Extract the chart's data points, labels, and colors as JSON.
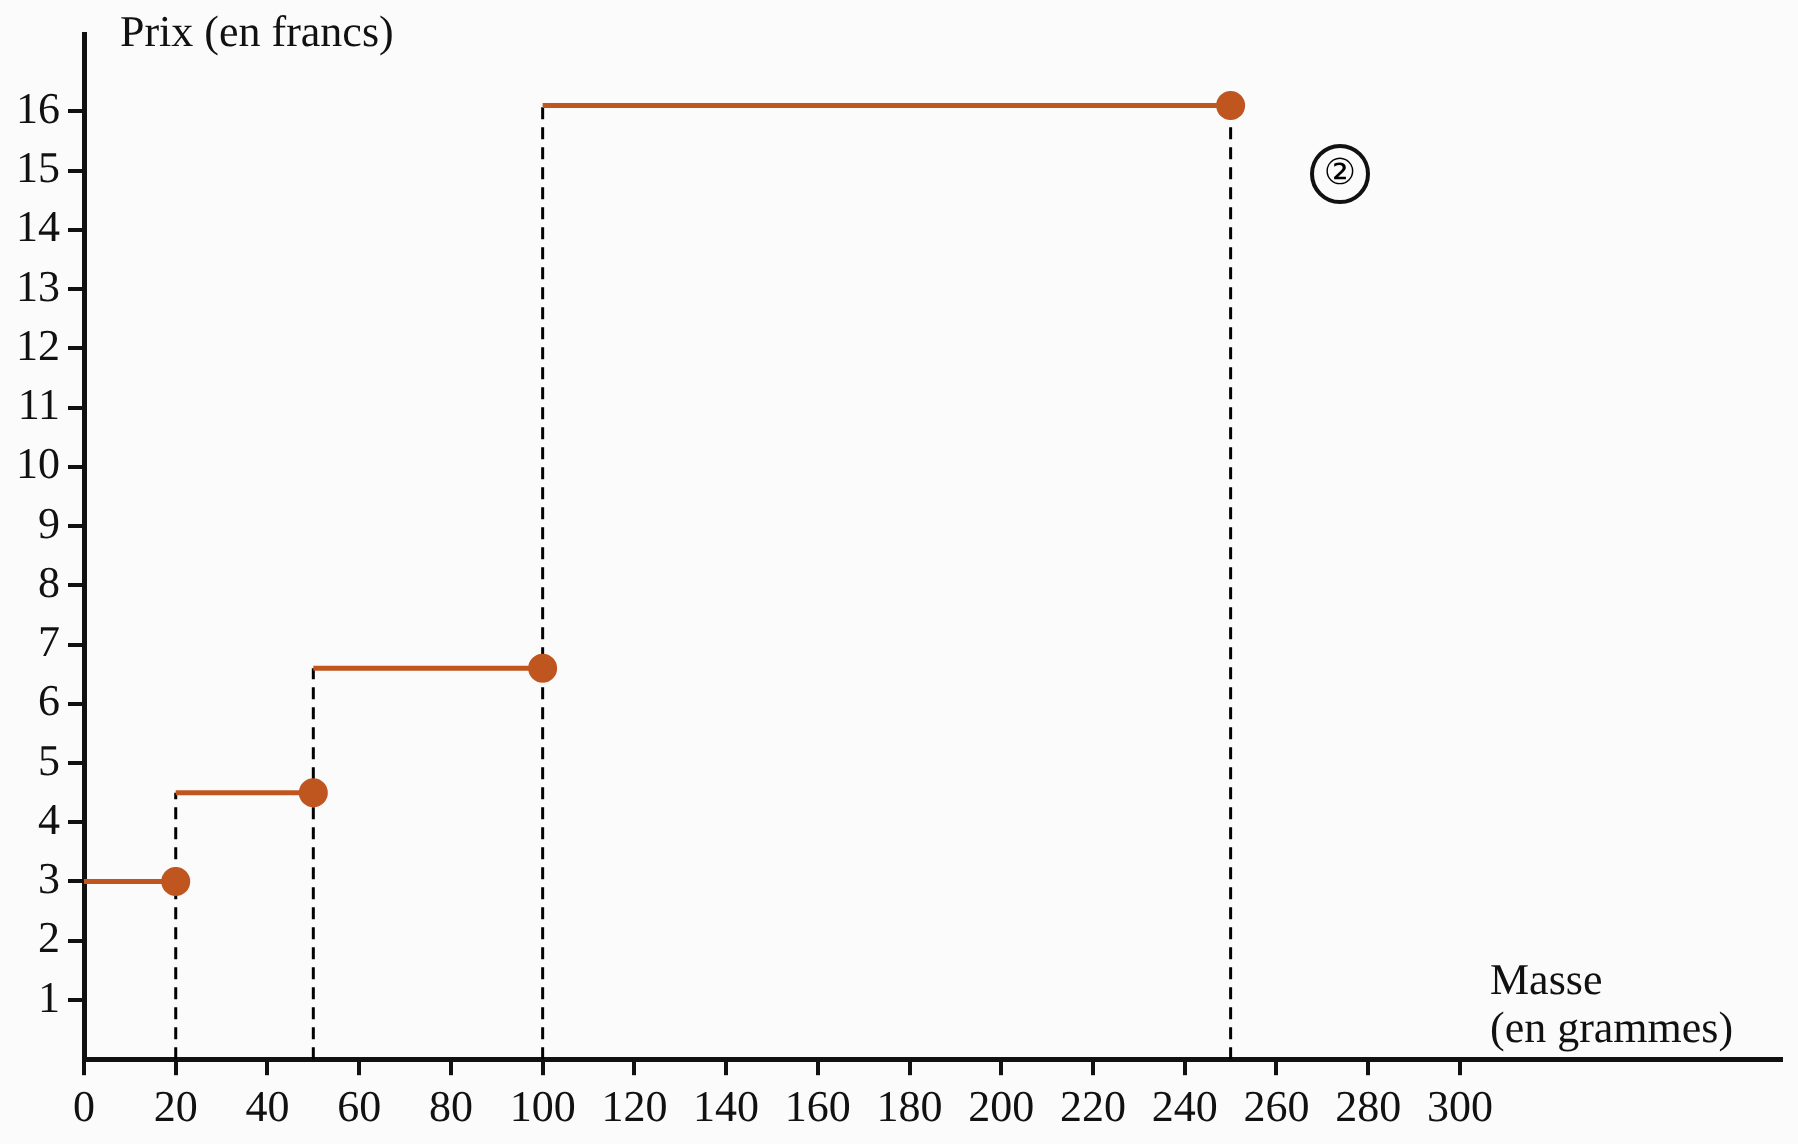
{
  "chart_data": {
    "type": "line",
    "xlabel": "Masse\n(en grammes)",
    "ylabel": "Prix (en francs)",
    "x": [
      0,
      20,
      20,
      50,
      50,
      100,
      100,
      250
    ],
    "series": [
      {
        "color": "#c0561f",
        "values": [
          3,
          3,
          4.5,
          4.5,
          6.6,
          6.6,
          16.1,
          16.1
        ]
      }
    ],
    "xlim": [
      0,
      370
    ],
    "xticks": [
      0,
      20,
      40,
      60,
      80,
      100,
      120,
      140,
      160,
      180,
      200,
      220,
      240,
      260,
      280,
      300
    ],
    "ylim": [
      0,
      17.3
    ],
    "yticks": [
      1,
      2,
      3,
      4,
      5,
      6,
      7,
      8,
      9,
      10,
      11,
      12,
      13,
      14,
      15,
      16
    ],
    "ref_lines": [
      {
        "axis": "x",
        "value": 20,
        "color": "#000000",
        "line_style": "dashed"
      },
      {
        "axis": "x",
        "value": 50,
        "color": "#000000",
        "line_style": "dashed"
      },
      {
        "axis": "x",
        "value": 100,
        "color": "#000000",
        "line_style": "dashed"
      },
      {
        "axis": "x",
        "value": 250,
        "color": "#000000",
        "line_style": "dashed"
      }
    ],
    "annotations": [
      "②"
    ],
    "grid": false,
    "legend": false,
    "marker": "circle",
    "line_style": "solid"
  }
}
